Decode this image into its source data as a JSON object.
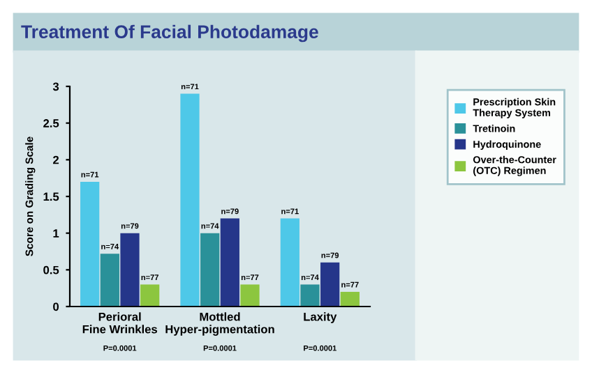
{
  "chart_data": {
    "type": "bar",
    "title": "Treatment Of Facial Photodamage",
    "ylabel": "Score on Grading Scale",
    "categories": [
      "Perioral\nFine Wrinkles",
      "Mottled\nHyper-pigmentation",
      "Laxity"
    ],
    "series": [
      {
        "name": "Prescription Skin\nTherapy System",
        "color": "#4ec8e8",
        "values": [
          1.7,
          2.9,
          1.2
        ]
      },
      {
        "name": "Tretinoin",
        "color": "#2a9199",
        "values": [
          0.72,
          1.0,
          0.3
        ]
      },
      {
        "name": "Hydroquinone",
        "color": "#25368a",
        "values": [
          1.0,
          1.2,
          0.6
        ]
      },
      {
        "name": "Over-the-Counter\n(OTC) Regimen",
        "color": "#8cc63f",
        "values": [
          0.3,
          0.3,
          0.2
        ]
      }
    ],
    "annotations": [
      "P=0.0001",
      "P=0.0001",
      "P=0.0001",
      "n=71",
      "n=74",
      "n=79",
      "n=77",
      "n=71",
      "n=74",
      "n=79",
      "n=77",
      "n=71",
      "n=74",
      "n=79",
      "n=77"
    ],
    "ylim": [
      0,
      3
    ],
    "yticks": [
      0,
      {
        "value": 0.5,
        "label": "0.5"
      },
      1,
      {
        "value": 1.5,
        "label": "1.5"
      },
      2,
      {
        "value": 2.5,
        "label": "2.5"
      },
      3
    ],
    "legend": "right"
  }
}
